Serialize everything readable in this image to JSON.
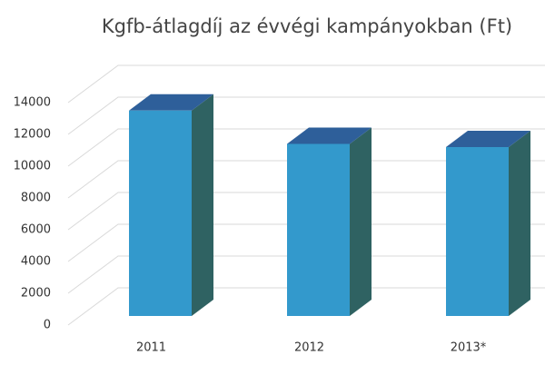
{
  "chart_data": {
    "type": "bar3d",
    "title": "Kgfb-átlagdíj az évvégi kampányokban (Ft)",
    "categories": [
      "2011",
      "2012",
      "2013*"
    ],
    "values": [
      13500,
      11400,
      11200
    ],
    "colors": {
      "front": "#3399cc",
      "top": "#2e5f9a",
      "side": "#2f6262"
    },
    "ylim": [
      0,
      14000
    ],
    "yticks": [
      0,
      2000,
      4000,
      6000,
      8000,
      10000,
      12000,
      14000
    ],
    "grid": true
  }
}
